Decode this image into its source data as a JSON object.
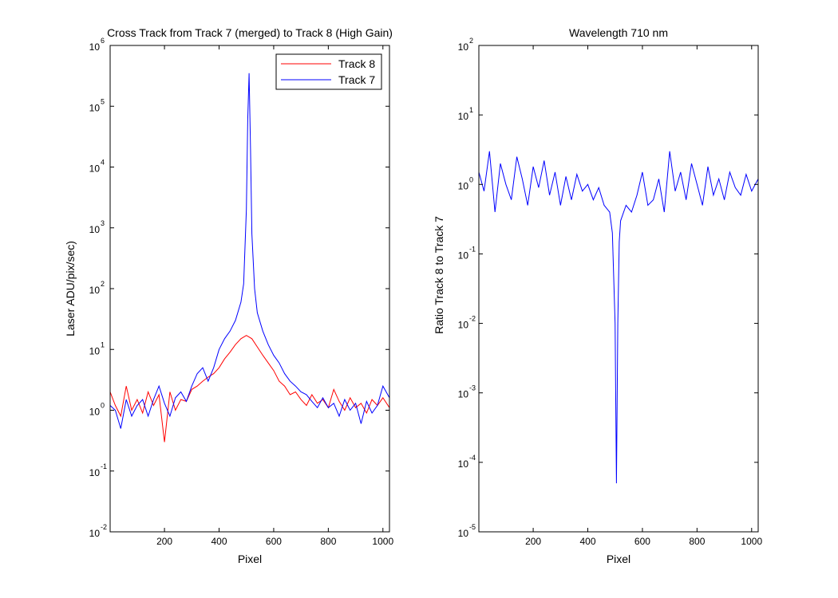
{
  "chart_data": [
    {
      "type": "line",
      "title": "Cross Track from Track 7 (merged) to Track 8 (High Gain)",
      "xlabel": "Pixel",
      "ylabel": "Laser ADU/pix/sec)",
      "xlim": [
        1,
        1024
      ],
      "ylim": [
        0.01,
        1000000
      ],
      "yscale": "log",
      "x_ticks": [
        200,
        400,
        600,
        800,
        1000
      ],
      "y_ticks": [
        {
          "base": "10",
          "exp": "-2",
          "value": 0.01
        },
        {
          "base": "10",
          "exp": "-1",
          "value": 0.1
        },
        {
          "base": "10",
          "exp": "0",
          "value": 1
        },
        {
          "base": "10",
          "exp": "1",
          "value": 10
        },
        {
          "base": "10",
          "exp": "2",
          "value": 100
        },
        {
          "base": "10",
          "exp": "3",
          "value": 1000
        },
        {
          "base": "10",
          "exp": "4",
          "value": 10000
        },
        {
          "base": "10",
          "exp": "5",
          "value": 100000
        },
        {
          "base": "10",
          "exp": "6",
          "value": 1000000
        }
      ],
      "legend": {
        "position": "top-right"
      },
      "series": [
        {
          "name": "Track 8",
          "color": "#ff0000",
          "x": [
            1,
            20,
            40,
            60,
            80,
            100,
            120,
            140,
            160,
            180,
            200,
            220,
            240,
            260,
            280,
            300,
            320,
            340,
            360,
            380,
            400,
            420,
            440,
            460,
            480,
            500,
            510,
            520,
            540,
            560,
            580,
            600,
            620,
            640,
            660,
            680,
            700,
            720,
            740,
            760,
            780,
            800,
            820,
            840,
            860,
            880,
            900,
            920,
            940,
            960,
            980,
            1000,
            1024
          ],
          "values": [
            2,
            1.2,
            0.8,
            2.5,
            1,
            1.5,
            0.9,
            2,
            1.2,
            1.8,
            0.3,
            2,
            1,
            1.5,
            1.4,
            2.2,
            2.5,
            3,
            3.5,
            4,
            5,
            7,
            9,
            12,
            15,
            17,
            16,
            15,
            11,
            8,
            6,
            4.5,
            3,
            2.5,
            1.8,
            2,
            1.5,
            1.2,
            1.8,
            1.3,
            1.5,
            1.1,
            2.2,
            1.4,
            1,
            1.6,
            1.1,
            1.3,
            0.9,
            1.5,
            1.2,
            1.6,
            1.1
          ]
        },
        {
          "name": "Track 7",
          "color": "#0000ff",
          "x": [
            1,
            20,
            40,
            60,
            80,
            100,
            120,
            140,
            160,
            180,
            200,
            220,
            240,
            260,
            280,
            300,
            320,
            340,
            360,
            380,
            400,
            420,
            440,
            460,
            480,
            490,
            500,
            505,
            510,
            515,
            520,
            530,
            540,
            560,
            580,
            600,
            620,
            640,
            660,
            680,
            700,
            720,
            740,
            760,
            780,
            800,
            820,
            840,
            860,
            880,
            900,
            920,
            940,
            960,
            980,
            1000,
            1024
          ],
          "values": [
            1.2,
            1,
            0.5,
            1.5,
            0.8,
            1.2,
            1.5,
            0.8,
            1.5,
            2.5,
            1.3,
            0.8,
            1.6,
            2,
            1.4,
            2.5,
            4,
            5,
            3,
            5,
            10,
            15,
            20,
            30,
            60,
            120,
            2000,
            60000,
            350000,
            20000,
            800,
            100,
            40,
            20,
            12,
            8,
            6,
            4,
            3,
            2.5,
            2,
            1.8,
            1.4,
            1.1,
            1.6,
            1.1,
            1.3,
            0.8,
            1.5,
            1,
            1.3,
            0.6,
            1.4,
            0.9,
            1.2,
            2.5,
            1.6
          ]
        }
      ]
    },
    {
      "type": "line",
      "title": "Wavelength 710 nm",
      "xlabel": "Pixel",
      "ylabel": "Ratio Track 8 to Track 7",
      "xlim": [
        1,
        1024
      ],
      "ylim": [
        1e-05,
        100
      ],
      "yscale": "log",
      "x_ticks": [
        200,
        400,
        600,
        800,
        1000
      ],
      "y_ticks": [
        {
          "base": "10",
          "exp": "-5",
          "value": 1e-05
        },
        {
          "base": "10",
          "exp": "-4",
          "value": 0.0001
        },
        {
          "base": "10",
          "exp": "-3",
          "value": 0.001
        },
        {
          "base": "10",
          "exp": "-2",
          "value": 0.01
        },
        {
          "base": "10",
          "exp": "-1",
          "value": 0.1
        },
        {
          "base": "10",
          "exp": "0",
          "value": 1
        },
        {
          "base": "10",
          "exp": "1",
          "value": 10
        },
        {
          "base": "10",
          "exp": "2",
          "value": 100
        }
      ],
      "series": [
        {
          "color": "#0000ff",
          "x": [
            1,
            20,
            40,
            60,
            80,
            100,
            120,
            140,
            160,
            180,
            200,
            220,
            240,
            260,
            280,
            300,
            320,
            340,
            360,
            380,
            400,
            420,
            440,
            460,
            480,
            490,
            500,
            505,
            510,
            515,
            520,
            540,
            560,
            580,
            600,
            620,
            640,
            660,
            680,
            700,
            720,
            740,
            760,
            780,
            800,
            820,
            840,
            860,
            880,
            900,
            920,
            940,
            960,
            980,
            1000,
            1024
          ],
          "values": [
            1.5,
            0.8,
            3,
            0.4,
            2,
            1,
            0.6,
            2.5,
            1.2,
            0.5,
            1.8,
            0.9,
            2.2,
            0.7,
            1.5,
            0.5,
            1.3,
            0.6,
            1.4,
            0.8,
            1,
            0.6,
            0.9,
            0.5,
            0.4,
            0.2,
            0.01,
            5e-05,
            0.01,
            0.15,
            0.3,
            0.5,
            0.4,
            0.7,
            1.5,
            0.5,
            0.6,
            1.2,
            0.4,
            3,
            0.8,
            1.5,
            0.6,
            2,
            1,
            0.5,
            1.8,
            0.7,
            1.2,
            0.6,
            1.5,
            0.9,
            0.7,
            1.4,
            0.8,
            1.2
          ]
        }
      ]
    }
  ]
}
